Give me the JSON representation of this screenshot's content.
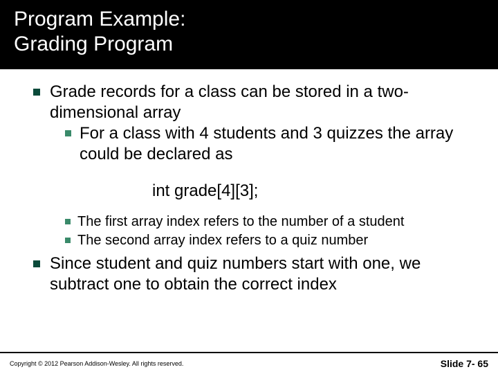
{
  "title": {
    "line1": "Program Example:",
    "line2": "Grading Program"
  },
  "bullets": {
    "b1": "Grade records for a class can be stored in a two-dimensional array",
    "b1_1": "For a class with 4 students and 3 quizzes the array could be declared as",
    "code": "int grade[4][3];",
    "b1_2": "The first array index  refers to the number of a student",
    "b1_3": "The second array index refers to a quiz number",
    "b2": "Since student and quiz numbers start with one, we subtract one to obtain the correct index"
  },
  "footer": {
    "copyright": "Copyright © 2012 Pearson Addison-Wesley.  All rights reserved.",
    "slide": "Slide 7- 65"
  },
  "colors": {
    "title_bg": "#000000",
    "title_fg": "#ffffff",
    "bullet_l1": "#0a4a3a",
    "bullet_l2": "#3a8a6a",
    "text": "#000000",
    "divider": "#000000"
  },
  "fonts": {
    "title_size": 30,
    "body_size": 24,
    "sub_size": 20,
    "copyright_size": 9,
    "slide_size": 14
  }
}
